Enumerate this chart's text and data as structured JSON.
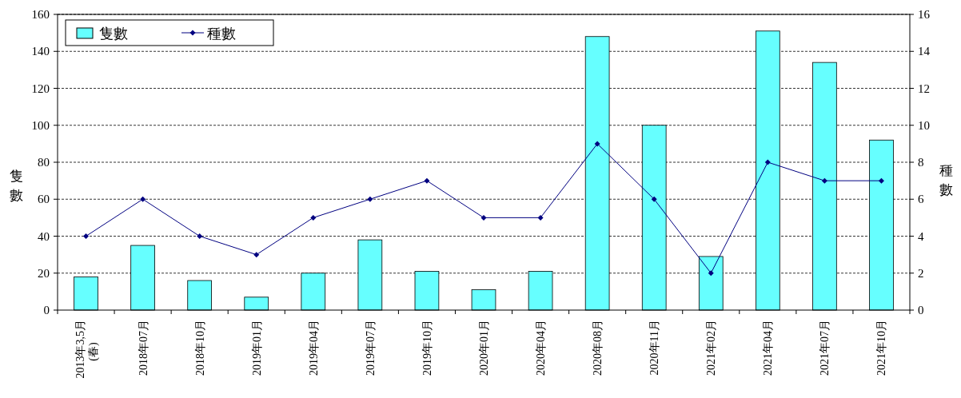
{
  "chart_data": {
    "type": "bar",
    "ylabel": "隻數",
    "y2label": "種數",
    "categories": [
      "2013年3,5月\n(春)",
      "2018年07月",
      "2018年10月",
      "2019年01月",
      "2019年04月",
      "2019年07月",
      "2019年10月",
      "2020年01月",
      "2020年04月",
      "2020年08月",
      "2020年11月",
      "2021年02月",
      "2021年04月",
      "2021年07月",
      "2021年10月"
    ],
    "series": [
      {
        "name": "隻數",
        "color": "#66ffff",
        "values": [
          18,
          35,
          16,
          7,
          20,
          38,
          21,
          11,
          21,
          148,
          100,
          29,
          151,
          134,
          92
        ]
      },
      {
        "name": "種數",
        "type": "line",
        "axis": "y2",
        "color": "#000080",
        "marker": "diamond",
        "values": [
          4,
          6,
          4,
          3,
          5,
          6,
          7,
          5,
          5,
          9,
          6,
          2,
          8,
          7,
          7
        ]
      }
    ],
    "ylim": [
      0,
      160
    ],
    "yticks": [
      0,
      20,
      40,
      60,
      80,
      100,
      120,
      140,
      160
    ],
    "y2lim": [
      0,
      16
    ],
    "y2ticks": [
      0,
      2,
      4,
      6,
      8,
      10,
      12,
      14,
      16
    ],
    "grid": "y",
    "legend": "top left"
  }
}
